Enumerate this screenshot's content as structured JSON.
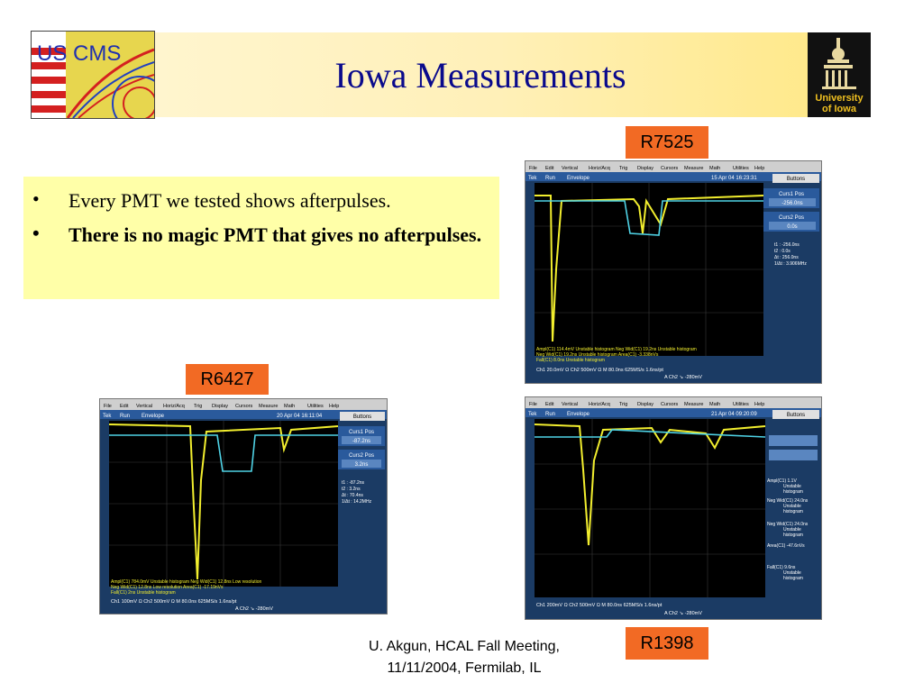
{
  "slide": {
    "title": "Iowa Measurements",
    "bullets": [
      "Every PMT we tested shows afterpulses.",
      "There is no magic PMT that gives no afterpulses."
    ],
    "footer_line1": "U. Akgun, HCAL Fall Meeting,",
    "footer_line2": "11/11/2004, Fermilab, IL"
  },
  "logos": {
    "cms_text": "US CMS",
    "iowa_line1": "University",
    "iowa_line2": "of Iowa"
  },
  "labels": {
    "r7525": "R7525",
    "r6427": "R6427",
    "r1398": "R1398"
  },
  "scopes": {
    "menu": [
      "File",
      "Edit",
      "Vertical",
      "Horiz/Acq",
      "Trig",
      "Display",
      "Cursors",
      "Measure",
      "Math",
      "Utilities",
      "Help"
    ],
    "tek": "Tek",
    "run": "Run",
    "envelope": "Envelope",
    "buttons": "Buttons",
    "r7525": {
      "date": "15 Apr 04 16:23:31",
      "curs1_label": "Curs1 Pos",
      "curs1_value": "-256.0ns",
      "curs2_label": "Curs2 Pos",
      "curs2_value": "0.0s",
      "readout": [
        "t1 :  -256.0ns",
        "t2 :  0.0s",
        "Δt :  256.0ns",
        "1/Δt :  3.906MHz"
      ],
      "meas": [
        "Ampl(C1)    114.4mV    Unstable histogram    Neg Wid(C1)  19.2ns    Unstable histogram",
        "Neg Wid(C1)  19.2ns    Unstable histogram    Area(C1)   -3.338nVs",
        "Fall(C1)    8.0ns     Unstable histogram"
      ],
      "bottom1": "Ch1   20.0mV  Ω     Ch2   500mV  Ω     M 80.0ns 625MS/s   1.6ns/pt",
      "bottom2": "A  Ch2  ↘  -280mV"
    },
    "r6427": {
      "date": "20 Apr 04 16:11:04",
      "curs1_label": "Curs1 Pos",
      "curs1_value": "-87.2ns",
      "curs2_label": "Curs2 Pos",
      "curs2_value": "3.2ns",
      "readout": [
        "t1 :  -87.2ns",
        "t2 :  3.2ns",
        "Δt :  70.4ns",
        "1/Δt :  14.2MHz"
      ],
      "meas": [
        "Ampl(C1)    784.0mV   Unstable histogram   Neg Wid(C1)  12.8ns   Low resolution",
        "Neg Wid(C1)  12.8ns   Low resolution      Area(C1)   -17.19nVs",
        "Fall(C1)    2ns      Unstable histogram"
      ],
      "bottom1": "Ch1   100mV  Ω     Ch2   500mV  Ω     M 80.0ns 625MS/s   1.6ns/pt",
      "bottom2": "A  Ch2  ↘  -280mV"
    },
    "r1398": {
      "date": "21 Apr 04 09:20:09",
      "side": [
        "Ampl(C1)    1.1V",
        "Unstable",
        "histogram",
        "Neg Wid(C1) 24.0ns",
        "Unstable",
        "histogram",
        "Neg Wid(C1) 24.0ns",
        "Unstable",
        "histogram",
        "Area(C1)    -47.6nVs",
        "",
        "Fall(C1)    9.6ns",
        "Unstable",
        "histogram"
      ],
      "bottom1": "Ch1   200mV  Ω     Ch2   500mV  Ω     M 80.0ns 625MS/s   1.6ns/pt",
      "bottom2": "A  Ch2  ↘  -280mV"
    }
  },
  "colors": {
    "title": "#0a0a8c",
    "label_bg": "#f26a24",
    "bullet_bg": "#ffffa8",
    "trace_yellow": "#f2ee2e",
    "trace_cyan": "#4fd3e6"
  }
}
